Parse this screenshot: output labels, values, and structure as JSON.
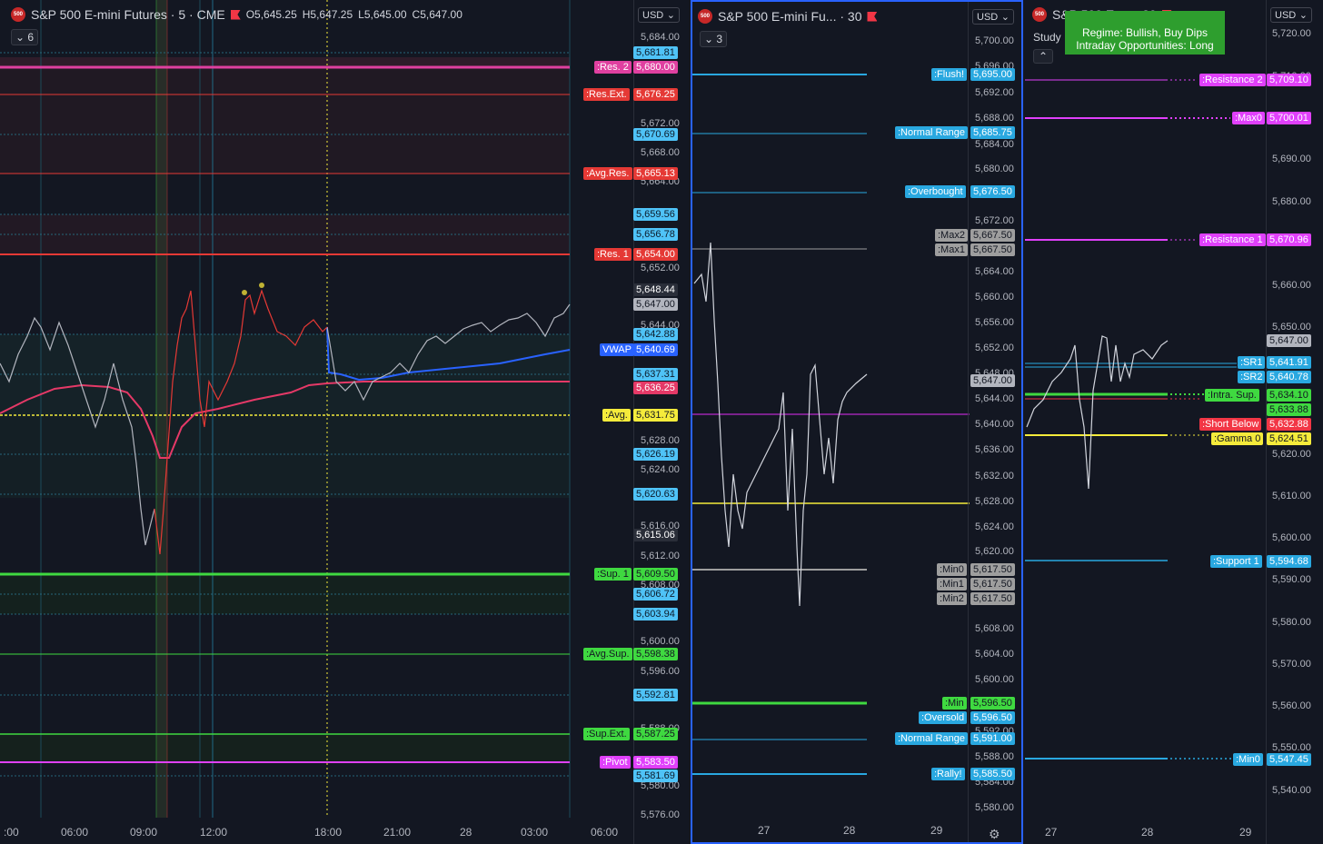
{
  "panel1": {
    "symbol": "S&P 500 E-mini Futures · 5 · CME",
    "logo": "500",
    "ohlc": {
      "o": "O5,645.25",
      "h": "H5,647.25",
      "l": "L5,645.00",
      "c": "C5,647.00"
    },
    "indicator_count": "6",
    "currency": "USD",
    "price_ticks": [
      "5,684.00",
      "5,672.00",
      "5,668.00",
      "5,652.00",
      "5,644.00",
      "5,628.00",
      "5,624.00",
      "5,616.00",
      "5,612.00",
      "5,600.00",
      "5,596.00",
      "5,588.00",
      "5,580.00",
      "5,576.00",
      "5,664.00",
      "5,608.00"
    ],
    "plain_labels": [
      {
        "v": "5,681.81"
      },
      {
        "v": "5,670.69"
      },
      {
        "v": "5,659.56"
      },
      {
        "v": "5,656.78"
      },
      {
        "v": "5,642.88"
      },
      {
        "v": "5,637.31"
      },
      {
        "v": "5,626.19"
      },
      {
        "v": "5,620.63"
      },
      {
        "v": "5,606.72"
      },
      {
        "v": "5,603.94"
      },
      {
        "v": "5,592.81"
      },
      {
        "v": "5,581.69"
      }
    ],
    "levels": [
      {
        "name": ":Res. 2",
        "v": "5,680.00",
        "color": "#e040a0"
      },
      {
        "name": ":Res.Ext.",
        "v": "5,676.25",
        "color": "#e53935"
      },
      {
        "name": ":Avg.Res.",
        "v": "5,665.13",
        "color": "#e53935"
      },
      {
        "name": ":Res. 1",
        "v": "5,654.00",
        "color": "#e53935"
      },
      {
        "name": "VWAP",
        "v": "5,640.69",
        "color": "#2962ff"
      },
      {
        "name": "",
        "v": "5,636.25",
        "color": "#e53967"
      },
      {
        "name": ":Avg.",
        "v": "5,631.75",
        "color": "#f5eb3b"
      },
      {
        "name": ":Sup. 1",
        "v": "5,609.50",
        "color": "#3fd940"
      },
      {
        "name": ":Avg.Sup.",
        "v": "5,598.38",
        "color": "#3fd940"
      },
      {
        "name": ":Sup.Ext.",
        "v": "5,587.25",
        "color": "#3fd940"
      },
      {
        "name": ":Pivot",
        "v": "5,583.50",
        "color": "#e040fb"
      }
    ],
    "price_marks": [
      {
        "v": "5,648.44"
      },
      {
        "v": "5,647.00"
      },
      {
        "v": "5,615.06"
      }
    ],
    "x_labels": [
      ":00",
      "06:00",
      "09:00",
      "12:00",
      "18:00",
      "21:00",
      "28",
      "03:00",
      "06:00"
    ]
  },
  "panel2": {
    "symbol": "S&P 500 E-mini Fu... · 30",
    "logo": "500",
    "indicator_count": "3",
    "currency": "USD",
    "price_ticks": [
      "5,700.00",
      "5,696.00",
      "5,692.00",
      "5,688.00",
      "5,684.00",
      "5,680.00",
      "5,672.00",
      "5,664.00",
      "5,660.00",
      "5,656.00",
      "5,652.00",
      "5,648.00",
      "5,644.00",
      "5,640.00",
      "5,636.00",
      "5,632.00",
      "5,628.00",
      "5,624.00",
      "5,620.00",
      "5,608.00",
      "5,604.00",
      "5,600.00",
      "5,592.00",
      "5,588.00",
      "5,584.00",
      "5,580.00"
    ],
    "levels": [
      {
        "name": ":Flush!",
        "v": "5,695.00",
        "color": "#29a8e0"
      },
      {
        "name": ":Normal Range",
        "v": "5,685.75",
        "color": "#29a8e0"
      },
      {
        "name": ":Overbought",
        "v": "5,676.50",
        "color": "#29a8e0"
      },
      {
        "name": ":Max2",
        "v": "5,667.50",
        "color": "#9e9e9e"
      },
      {
        "name": ":Max1",
        "v": "5,667.50",
        "color": "#9e9e9e"
      },
      {
        "name": "",
        "v": "5,647.00",
        "color": "#b2b5be"
      },
      {
        "name": ":Min0",
        "v": "5,617.50",
        "color": "#9e9e9e"
      },
      {
        "name": ":Min1",
        "v": "5,617.50",
        "color": "#9e9e9e"
      },
      {
        "name": ":Min2",
        "v": "5,617.50",
        "color": "#9e9e9e"
      },
      {
        "name": ":Min",
        "v": "5,596.50",
        "color": "#3fd940"
      },
      {
        "name": ":Oversold",
        "v": "5,596.50",
        "color": "#29a8e0"
      },
      {
        "name": ":Normal Range",
        "v": "5,591.00",
        "color": "#29a8e0"
      },
      {
        "name": ":Rally!",
        "v": "5,585.50",
        "color": "#29a8e0"
      }
    ],
    "x_labels": [
      "27",
      "28",
      "29"
    ],
    "settings_icon": "gear-icon"
  },
  "panel3": {
    "symbol": "S&P 500 E-...",
    "interval": "· 30",
    "logo": "500",
    "study_label": "Study",
    "banner_line1": "Regime: Bullish, Buy Dips",
    "banner_line2": "Intraday Opportunities: Long",
    "currency": "USD",
    "price_ticks": [
      "5,720.00",
      "5,710.00",
      "5,690.00",
      "5,680.00",
      "5,660.00",
      "5,650.00",
      "5,620.00",
      "5,610.00",
      "5,600.00",
      "5,590.00",
      "5,580.00",
      "5,570.00",
      "5,560.00",
      "5,550.00",
      "5,540.00"
    ],
    "levels": [
      {
        "name": ":Resistance 2",
        "v": "5,709.10",
        "color": "#e040fb"
      },
      {
        "name": ":Max0",
        "v": "5,700.01",
        "color": "#e040fb"
      },
      {
        "name": ":Resistance 1",
        "v": "5,670.96",
        "color": "#e040fb"
      },
      {
        "name": "",
        "v": "5,647.00",
        "color": "#b2b5be"
      },
      {
        "name": ":SR1",
        "v": "5,641.91",
        "color": "#29a8e0"
      },
      {
        "name": ":SR2",
        "v": "5,640.78",
        "color": "#29a8e0"
      },
      {
        "name": ":Intra. Sup.",
        "v": "5,634.10",
        "color": "#3fd940"
      },
      {
        "name": "",
        "v": "5,633.88",
        "color": "#3fd940"
      },
      {
        "name": ":Short Below",
        "v": "5,632.88",
        "color": "#f23645"
      },
      {
        "name": ":Gamma 0",
        "v": "5,624.51",
        "color": "#f5eb3b"
      },
      {
        "name": ":Support 1",
        "v": "5,594.68",
        "color": "#29a8e0"
      },
      {
        "name": ":Min0",
        "v": "5,547.45",
        "color": "#29a8e0"
      }
    ],
    "x_labels": [
      "27",
      "28",
      "29"
    ]
  }
}
